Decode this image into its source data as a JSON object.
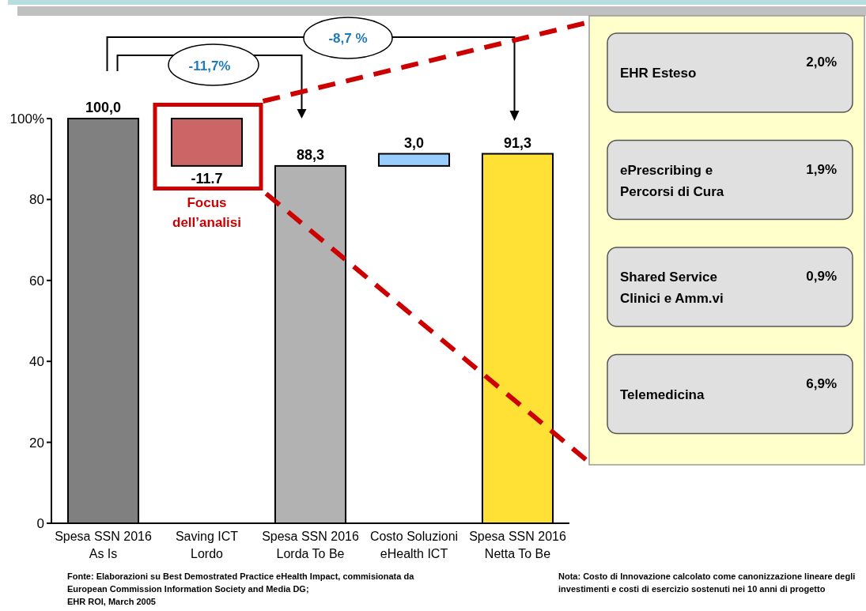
{
  "chart_data": [
    {
      "type": "bar",
      "categories": [
        "Spesa SSN 2016\nAs Is",
        "Saving ICT\nLordo",
        "Spesa SSN 2016\nLorda To Be",
        "Costo Soluzioni\neHealth ICT",
        "Spesa SSN 2016\nNetta To Be"
      ],
      "values": [
        100,
        -11.7,
        88.3,
        3.0,
        91.3
      ],
      "base": [
        0,
        100,
        0,
        88.3,
        0
      ],
      "colors": [
        "#808080",
        "#cc6666",
        "#b2b2b2",
        "#99ccff",
        "#ffe135"
      ],
      "value_labels": [
        "100,0",
        "-11.7",
        "88,3",
        "3,0",
        "91,3"
      ],
      "ylim": [
        0,
        100
      ],
      "yticks": [
        0,
        20,
        40,
        60,
        80,
        {
          "value": 100,
          "label": "100%"
        }
      ],
      "grid": false,
      "annotations": [
        "-11,7%",
        "-8,7 %",
        "Focus dell’analisi",
        "Fonte: Elaborazioni su Best Demostrated Practice eHealth Impact, commisionata da\nEuropean Commission Information Society and Media DG;\nEHR ROI, March 2005",
        "Nota: Costo di Innovazione calcolato come canonizzazione lineare degli\ninvestimenti e costi di esercizio sostenuti nei 10 anni di progetto"
      ]
    },
    {
      "type": "other",
      "categories": [
        "EHR Esteso",
        "ePrescribing e\nPercorsi di Cura",
        "Shared Service\nClinici e Amm.vi",
        "Telemedicina"
      ],
      "value_labels": [
        "2,0%",
        "1,9%",
        "0,9%",
        "6,9%"
      ]
    }
  ]
}
